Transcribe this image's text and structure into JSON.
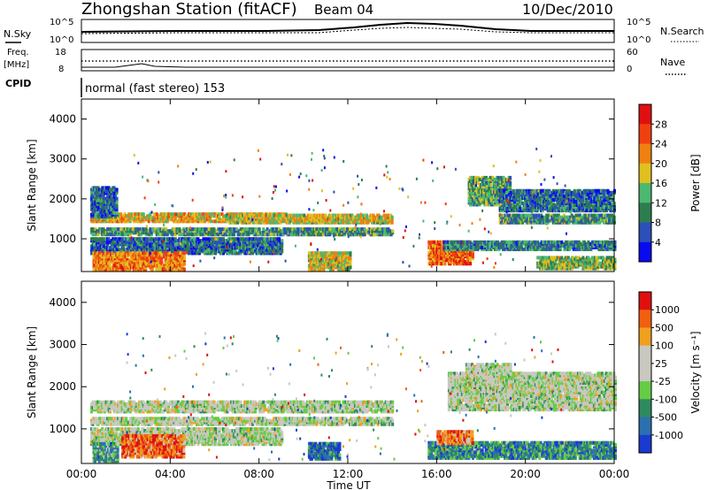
{
  "header": {
    "station_title": "Zhongshan Station (fitACF)",
    "beam": "Beam 04",
    "date": "10/Dec/2010"
  },
  "summary_panel": {
    "nsky_label": "N.Sky",
    "nsearch_label": "N.Search",
    "nsky_ticks": [
      "10^5",
      "10^0"
    ],
    "nsearch_ticks": [
      "10^5",
      "10^0"
    ],
    "freq_label_1": "Freq.",
    "freq_label_2": "[MHz]",
    "freq_ticks": [
      "18",
      "8"
    ],
    "nave_label": "Nave",
    "nave_ticks": [
      "60",
      "0"
    ],
    "cpid_label": "CPID",
    "cpid_text": "normal (fast stereo) 153"
  },
  "chart_data": [
    {
      "type": "heatmap",
      "title": "",
      "parameter": "Power",
      "xlabel": "Time UT",
      "ylabel": "Slant Range [km]",
      "xlim": [
        "00:00",
        "24:00"
      ],
      "ylim": [
        180,
        4500
      ],
      "x_ticks": [
        "00:00",
        "04:00",
        "08:00",
        "12:00",
        "16:00",
        "20:00",
        "00:00"
      ],
      "y_ticks": [
        1000,
        2000,
        3000,
        4000
      ],
      "colorbar_label": "Power [dB]",
      "colorbar_ticks": [
        4,
        8,
        12,
        16,
        20,
        24,
        28
      ],
      "colors": [
        "#0a0af0",
        "#2c50b8",
        "#2e7d50",
        "#4db870",
        "#e0c020",
        "#f08010",
        "#f04010",
        "#e01010"
      ],
      "bands": [
        {
          "t0": 0.4,
          "t1": 9.2,
          "r0": 1480,
          "r1": 1680,
          "level": 0.6
        },
        {
          "t0": 0.4,
          "t1": 14.0,
          "r0": 1150,
          "r1": 1330,
          "level": 0.35
        },
        {
          "t0": 0.4,
          "t1": 9.0,
          "r0": 680,
          "r1": 1080,
          "level": 0.25
        },
        {
          "t0": 0.5,
          "t1": 4.6,
          "r0": 280,
          "r1": 700,
          "level": 0.7
        },
        {
          "t0": 0.4,
          "t1": 1.6,
          "r0": 1600,
          "r1": 2350,
          "level": 0.25
        },
        {
          "t0": 6.5,
          "t1": 14.0,
          "r0": 1450,
          "r1": 1650,
          "level": 0.55
        },
        {
          "t0": 10.2,
          "t1": 12.1,
          "r0": 280,
          "r1": 720,
          "level": 0.55
        },
        {
          "t0": 15.6,
          "t1": 17.6,
          "r0": 420,
          "r1": 1000,
          "level": 0.75
        },
        {
          "t0": 16.3,
          "t1": 24.0,
          "r0": 780,
          "r1": 1000,
          "level": 0.3
        },
        {
          "t0": 18.8,
          "t1": 24.0,
          "r0": 1450,
          "r1": 1650,
          "level": 0.35
        },
        {
          "t0": 17.4,
          "t1": 19.3,
          "r0": 1900,
          "r1": 2600,
          "level": 0.4
        },
        {
          "t0": 18.8,
          "t1": 24.0,
          "r0": 1750,
          "r1": 2250,
          "level": 0.25
        },
        {
          "t0": 20.5,
          "t1": 24.0,
          "r0": 300,
          "r1": 600,
          "level": 0.45
        }
      ]
    },
    {
      "type": "heatmap",
      "title": "",
      "parameter": "Velocity",
      "xlabel": "Time UT",
      "ylabel": "Slant Range [km]",
      "xlim": [
        "00:00",
        "24:00"
      ],
      "ylim": [
        180,
        4500
      ],
      "x_ticks": [
        "00:00",
        "04:00",
        "08:00",
        "12:00",
        "16:00",
        "20:00",
        "00:00"
      ],
      "y_ticks": [
        1000,
        2000,
        3000,
        4000
      ],
      "colorbar_label": "Velocity [m s⁻¹]",
      "colorbar_ticks": [
        1000,
        500,
        100,
        25,
        -25,
        -100,
        -500,
        -1000
      ],
      "colors": [
        "#1a3ad0",
        "#2c70b0",
        "#2e8a60",
        "#66cc44",
        "#c8c8c0",
        "#c8c8c0",
        "#f0a020",
        "#f06010",
        "#e01010"
      ],
      "bands": [
        {
          "t0": 0.4,
          "t1": 14.0,
          "r0": 1450,
          "r1": 1680,
          "level": 0.5
        },
        {
          "t0": 0.4,
          "t1": 14.0,
          "r0": 1150,
          "r1": 1330,
          "level": 0.5
        },
        {
          "t0": 0.4,
          "t1": 9.0,
          "r0": 680,
          "r1": 1080,
          "level": 0.5
        },
        {
          "t0": 1.8,
          "t1": 4.6,
          "r0": 380,
          "r1": 900,
          "level": 0.82
        },
        {
          "t0": 0.5,
          "t1": 1.6,
          "r0": 280,
          "r1": 700,
          "level": 0.3
        },
        {
          "t0": 10.2,
          "t1": 11.6,
          "r0": 330,
          "r1": 700,
          "level": 0.15
        },
        {
          "t0": 15.6,
          "t1": 24.0,
          "r0": 350,
          "r1": 750,
          "level": 0.25
        },
        {
          "t0": 16.0,
          "t1": 17.6,
          "r0": 700,
          "r1": 1000,
          "level": 0.8
        },
        {
          "t0": 16.5,
          "t1": 24.0,
          "r0": 1500,
          "r1": 2400,
          "level": 0.5
        },
        {
          "t0": 17.3,
          "t1": 19.3,
          "r0": 1800,
          "r1": 2600,
          "level": 0.5
        }
      ]
    }
  ]
}
